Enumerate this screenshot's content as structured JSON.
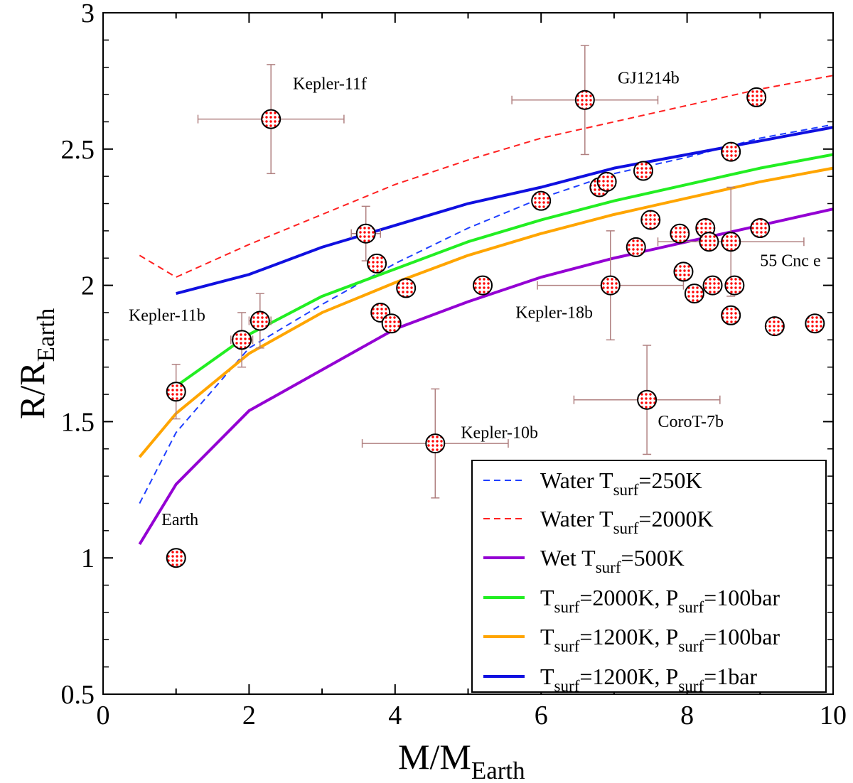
{
  "chart_data": {
    "type": "scatter",
    "title": "",
    "xlabel": "M/M",
    "xlabel_sub": "Earth",
    "ylabel": "R/R",
    "ylabel_sub": "Earth",
    "xlim": [
      0,
      10
    ],
    "ylim": [
      0.5,
      3
    ],
    "x_ticks": [
      "0",
      "2",
      "4",
      "6",
      "8",
      "10"
    ],
    "y_ticks": [
      "0.5",
      "1",
      "1.5",
      "2",
      "2.5",
      "3"
    ],
    "x_tick_values": [
      0,
      2,
      4,
      6,
      8,
      10
    ],
    "y_tick_values": [
      0.5,
      1,
      1.5,
      2,
      2.5,
      3
    ],
    "grid": false,
    "legend_position": "bottom-right",
    "series": [
      {
        "name": "Water T_surf=250K",
        "label_pre": "Water T",
        "label_sub": "surf",
        "label_post": "=250K",
        "color": "#1f3fff",
        "dash": "dashed",
        "x": [
          0.5,
          1,
          2,
          3,
          4,
          5,
          6,
          7,
          8,
          9,
          10
        ],
        "y": [
          1.2,
          1.46,
          1.77,
          1.93,
          2.08,
          2.21,
          2.32,
          2.41,
          2.47,
          2.54,
          2.59
        ]
      },
      {
        "name": "Water T_surf=2000K",
        "label_pre": "Water T",
        "label_sub": "surf",
        "label_post": "=2000K",
        "color": "#ff2020",
        "dash": "dashed",
        "x": [
          0.5,
          1,
          2,
          3,
          4,
          5,
          6,
          7,
          8,
          9,
          10
        ],
        "y": [
          2.11,
          2.03,
          2.15,
          2.26,
          2.37,
          2.46,
          2.54,
          2.6,
          2.66,
          2.72,
          2.77
        ]
      },
      {
        "name": "Wet T_surf=500K",
        "label_pre": "Wet T",
        "label_sub": "surf",
        "label_post": "=500K",
        "color": "#9400d3",
        "dash": "solid",
        "x": [
          0.5,
          1,
          2,
          3,
          4,
          5,
          6,
          7,
          8,
          9,
          10
        ],
        "y": [
          1.05,
          1.27,
          1.54,
          1.69,
          1.84,
          1.94,
          2.03,
          2.1,
          2.16,
          2.22,
          2.28
        ]
      },
      {
        "name": "T_surf=2000K, P_surf=100bar",
        "label_pre": "T",
        "label_sub": "surf",
        "label_mid": "=2000K, P",
        "label_sub2": "surf",
        "label_post": "=100bar",
        "color": "#22ee22",
        "dash": "solid",
        "x": [
          1,
          2,
          3,
          4,
          5,
          6,
          7,
          8,
          9,
          10
        ],
        "y": [
          1.63,
          1.82,
          1.96,
          2.06,
          2.16,
          2.24,
          2.31,
          2.37,
          2.43,
          2.48
        ]
      },
      {
        "name": "T_surf=1200K, P_surf=100bar",
        "label_pre": "T",
        "label_sub": "surf",
        "label_mid": "=1200K, P",
        "label_sub2": "surf",
        "label_post": "=100bar",
        "color": "#ffa500",
        "dash": "solid",
        "x": [
          0.5,
          1,
          2,
          3,
          4,
          5,
          6,
          7,
          8,
          9,
          10
        ],
        "y": [
          1.37,
          1.53,
          1.75,
          1.9,
          2.01,
          2.11,
          2.19,
          2.26,
          2.32,
          2.38,
          2.43
        ]
      },
      {
        "name": "T_surf=1200K, P_surf=1bar",
        "label_pre": "T",
        "label_sub": "surf",
        "label_mid": "=1200K, P",
        "label_sub2": "surf",
        "label_post": "=1bar",
        "color": "#1010e0",
        "dash": "solid",
        "x": [
          1,
          2,
          3,
          4,
          5,
          6,
          7,
          8,
          9,
          10
        ],
        "y": [
          1.97,
          2.04,
          2.14,
          2.22,
          2.3,
          2.36,
          2.43,
          2.48,
          2.53,
          2.58
        ]
      }
    ],
    "planets": [
      {
        "x": 1.0,
        "y": 1.0
      },
      {
        "x": 1.0,
        "y": 1.61,
        "xerr": 0.1,
        "yerr": 0.1
      },
      {
        "x": 1.9,
        "y": 1.8,
        "xerr": 0.15,
        "yerr": 0.1
      },
      {
        "x": 2.15,
        "y": 1.87,
        "xerr": 0.15,
        "yerr": 0.1
      },
      {
        "x": 2.3,
        "y": 2.61,
        "xerr": 1.0,
        "yerr": 0.2
      },
      {
        "x": 3.6,
        "y": 2.19,
        "xerr": 0.2,
        "yerr": 0.1
      },
      {
        "x": 3.75,
        "y": 2.08
      },
      {
        "x": 3.8,
        "y": 1.9
      },
      {
        "x": 3.95,
        "y": 1.86
      },
      {
        "x": 4.15,
        "y": 1.99
      },
      {
        "x": 4.55,
        "y": 1.42,
        "xerr": 1.0,
        "yerr": 0.2
      },
      {
        "x": 5.2,
        "y": 2.0
      },
      {
        "x": 6.0,
        "y": 2.31
      },
      {
        "x": 6.6,
        "y": 2.68,
        "xerr": 1.0,
        "yerr": 0.2
      },
      {
        "x": 6.8,
        "y": 2.36
      },
      {
        "x": 6.9,
        "y": 2.38
      },
      {
        "x": 6.95,
        "y": 2.0,
        "xerr": 1.0,
        "yerr": 0.2
      },
      {
        "x": 7.3,
        "y": 2.14
      },
      {
        "x": 7.4,
        "y": 2.42
      },
      {
        "x": 7.5,
        "y": 2.24
      },
      {
        "x": 7.45,
        "y": 1.58,
        "xerr": 1.0,
        "yerr": 0.2
      },
      {
        "x": 7.9,
        "y": 2.19
      },
      {
        "x": 7.95,
        "y": 2.05
      },
      {
        "x": 8.1,
        "y": 1.97
      },
      {
        "x": 8.25,
        "y": 2.21
      },
      {
        "x": 8.3,
        "y": 2.16
      },
      {
        "x": 8.35,
        "y": 2.0
      },
      {
        "x": 8.6,
        "y": 2.16,
        "xerr": 1.0,
        "yerr": 0.2
      },
      {
        "x": 8.6,
        "y": 1.89
      },
      {
        "x": 8.65,
        "y": 2.0
      },
      {
        "x": 8.6,
        "y": 2.49
      },
      {
        "x": 8.95,
        "y": 2.69
      },
      {
        "x": 9.0,
        "y": 2.21
      },
      {
        "x": 9.2,
        "y": 1.85
      },
      {
        "x": 9.75,
        "y": 1.86
      }
    ],
    "annotations": [
      {
        "text": "Kepler-11f",
        "x": 2.6,
        "y": 2.72
      },
      {
        "text": "GJ1214b",
        "x": 7.05,
        "y": 2.74
      },
      {
        "text": "Kepler-11b",
        "x": 0.35,
        "y": 1.87
      },
      {
        "text": "Kepler-18b",
        "x": 5.65,
        "y": 1.88
      },
      {
        "text": "55 Cnc e",
        "x": 9.0,
        "y": 2.07
      },
      {
        "text": "CoroT-7b",
        "x": 7.6,
        "y": 1.48
      },
      {
        "text": "Kepler-10b",
        "x": 4.9,
        "y": 1.44
      },
      {
        "text": "Earth",
        "x": 0.8,
        "y": 1.12
      }
    ]
  }
}
